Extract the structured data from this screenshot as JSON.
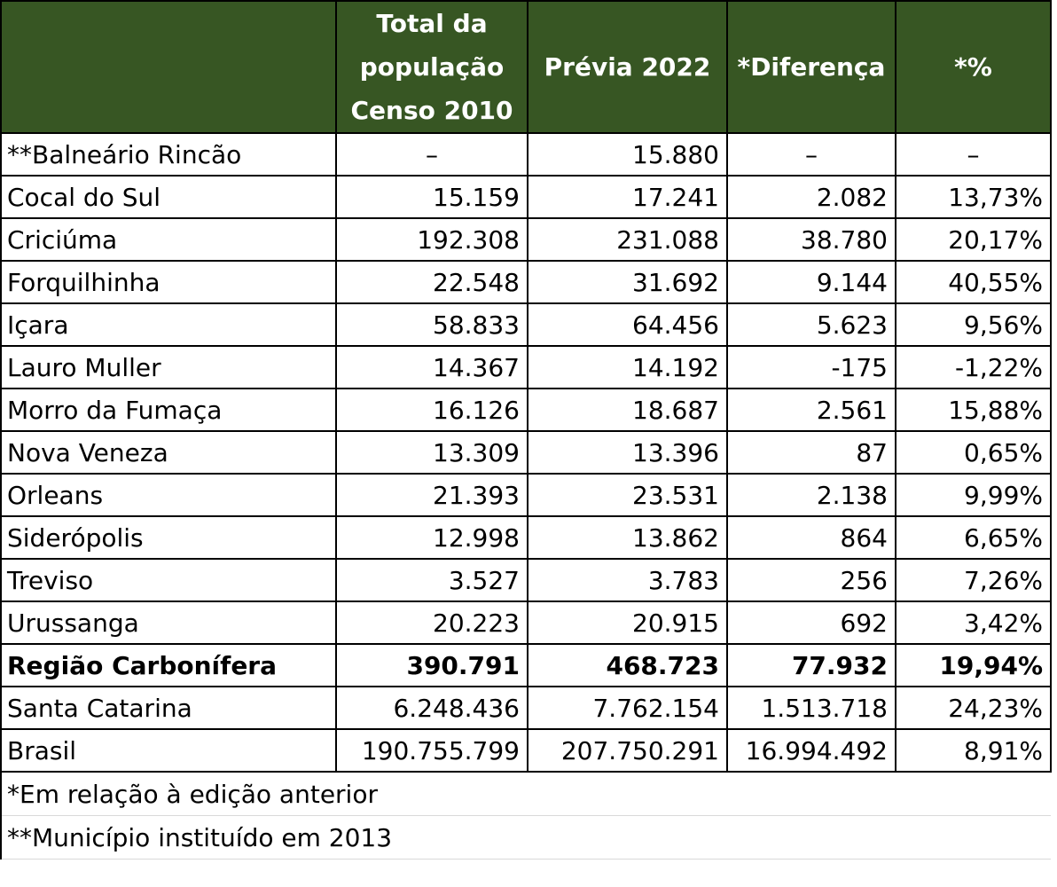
{
  "table": {
    "headers": [
      "",
      "Total da população Censo 2010",
      "Prévia 2022",
      "*Diferença",
      "*%"
    ],
    "rows": [
      {
        "name": "**Balneário Rincão",
        "censo2010": "–",
        "previa2022": "15.880",
        "diferenca": "–",
        "pct": "–",
        "bold": false
      },
      {
        "name": "Cocal do Sul",
        "censo2010": "15.159",
        "previa2022": "17.241",
        "diferenca": "2.082",
        "pct": "13,73%",
        "bold": false
      },
      {
        "name": "Criciúma",
        "censo2010": "192.308",
        "previa2022": "231.088",
        "diferenca": "38.780",
        "pct": "20,17%",
        "bold": false
      },
      {
        "name": "Forquilhinha",
        "censo2010": "22.548",
        "previa2022": "31.692",
        "diferenca": "9.144",
        "pct": "40,55%",
        "bold": false
      },
      {
        "name": "Içara",
        "censo2010": "58.833",
        "previa2022": "64.456",
        "diferenca": "5.623",
        "pct": "9,56%",
        "bold": false
      },
      {
        "name": "Lauro Muller",
        "censo2010": "14.367",
        "previa2022": "14.192",
        "diferenca": "-175",
        "pct": "-1,22%",
        "bold": false
      },
      {
        "name": "Morro da Fumaça",
        "censo2010": "16.126",
        "previa2022": "18.687",
        "diferenca": "2.561",
        "pct": "15,88%",
        "bold": false
      },
      {
        "name": "Nova Veneza",
        "censo2010": "13.309",
        "previa2022": "13.396",
        "diferenca": "87",
        "pct": "0,65%",
        "bold": false
      },
      {
        "name": "Orleans",
        "censo2010": "21.393",
        "previa2022": "23.531",
        "diferenca": "2.138",
        "pct": "9,99%",
        "bold": false
      },
      {
        "name": "Siderópolis",
        "censo2010": "12.998",
        "previa2022": "13.862",
        "diferenca": "864",
        "pct": "6,65%",
        "bold": false
      },
      {
        "name": "Treviso",
        "censo2010": "3.527",
        "previa2022": "3.783",
        "diferenca": "256",
        "pct": "7,26%",
        "bold": false
      },
      {
        "name": "Urussanga",
        "censo2010": "20.223",
        "previa2022": "20.915",
        "diferenca": "692",
        "pct": "3,42%",
        "bold": false
      },
      {
        "name": "Região Carbonífera",
        "censo2010": "390.791",
        "previa2022": "468.723",
        "diferenca": "77.932",
        "pct": "19,94%",
        "bold": true
      },
      {
        "name": "Santa Catarina",
        "censo2010": "6.248.436",
        "previa2022": "7.762.154",
        "diferenca": "1.513.718",
        "pct": "24,23%",
        "bold": false
      },
      {
        "name": "Brasil",
        "censo2010": "190.755.799",
        "previa2022": "207.750.291",
        "diferenca": "16.994.492",
        "pct": "8,91%",
        "bold": false
      }
    ],
    "footnotes": [
      "*Em relação à edição anterior",
      "**Município instituído em 2013"
    ]
  },
  "colors": {
    "header_bg": "#375623",
    "header_text": "#ffffff"
  }
}
